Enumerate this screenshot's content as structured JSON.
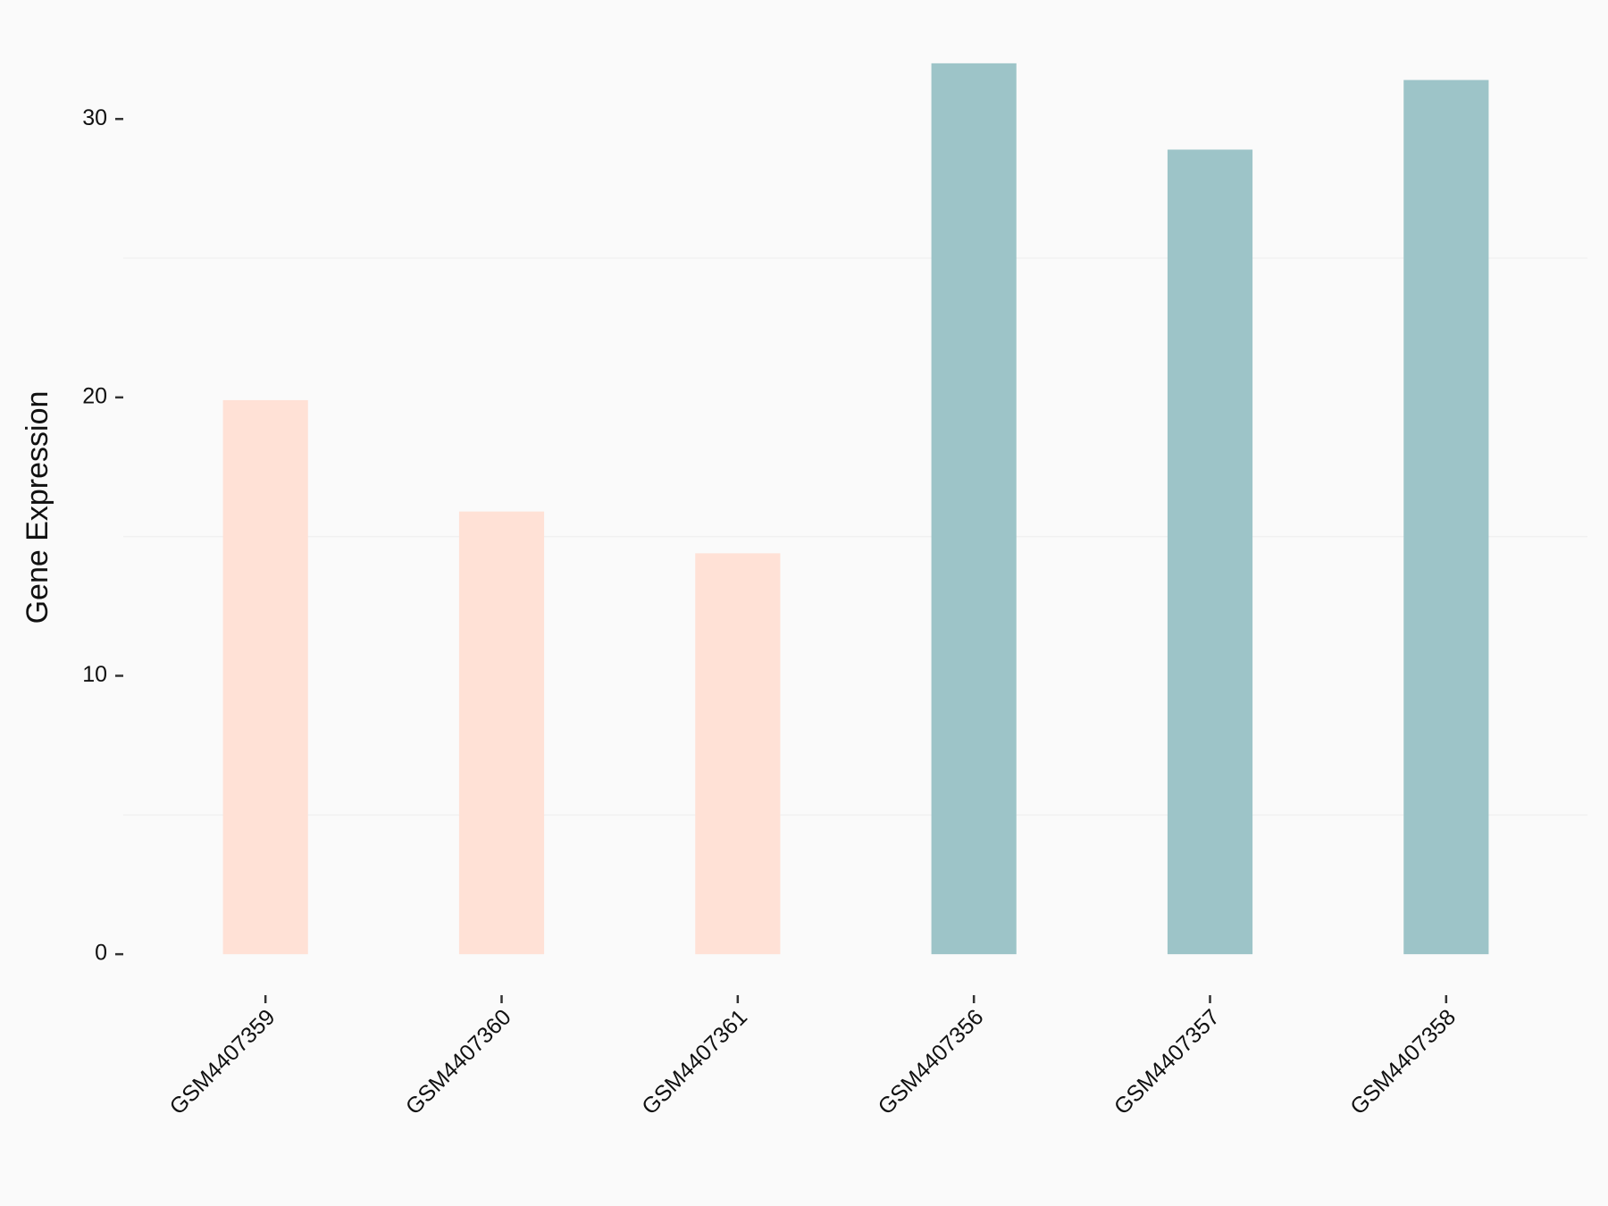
{
  "chart_data": {
    "type": "bar",
    "y_label": "Gene Expression",
    "categories": [
      "GSM4407359",
      "GSM4407360",
      "GSM4407361",
      "GSM4407356",
      "GSM4407357",
      "GSM4407358"
    ],
    "values": [
      19.9,
      15.9,
      14.4,
      32.0,
      28.9,
      31.4
    ],
    "colors": [
      "#ffe1d6",
      "#ffe1d6",
      "#ffe1d6",
      "#9dc4c8",
      "#9dc4c8",
      "#9dc4c8"
    ],
    "ylim": [
      -1.6,
      33.6
    ],
    "yticks": [
      0,
      10,
      20,
      30
    ],
    "minor_grid": [
      5,
      15,
      25
    ]
  }
}
